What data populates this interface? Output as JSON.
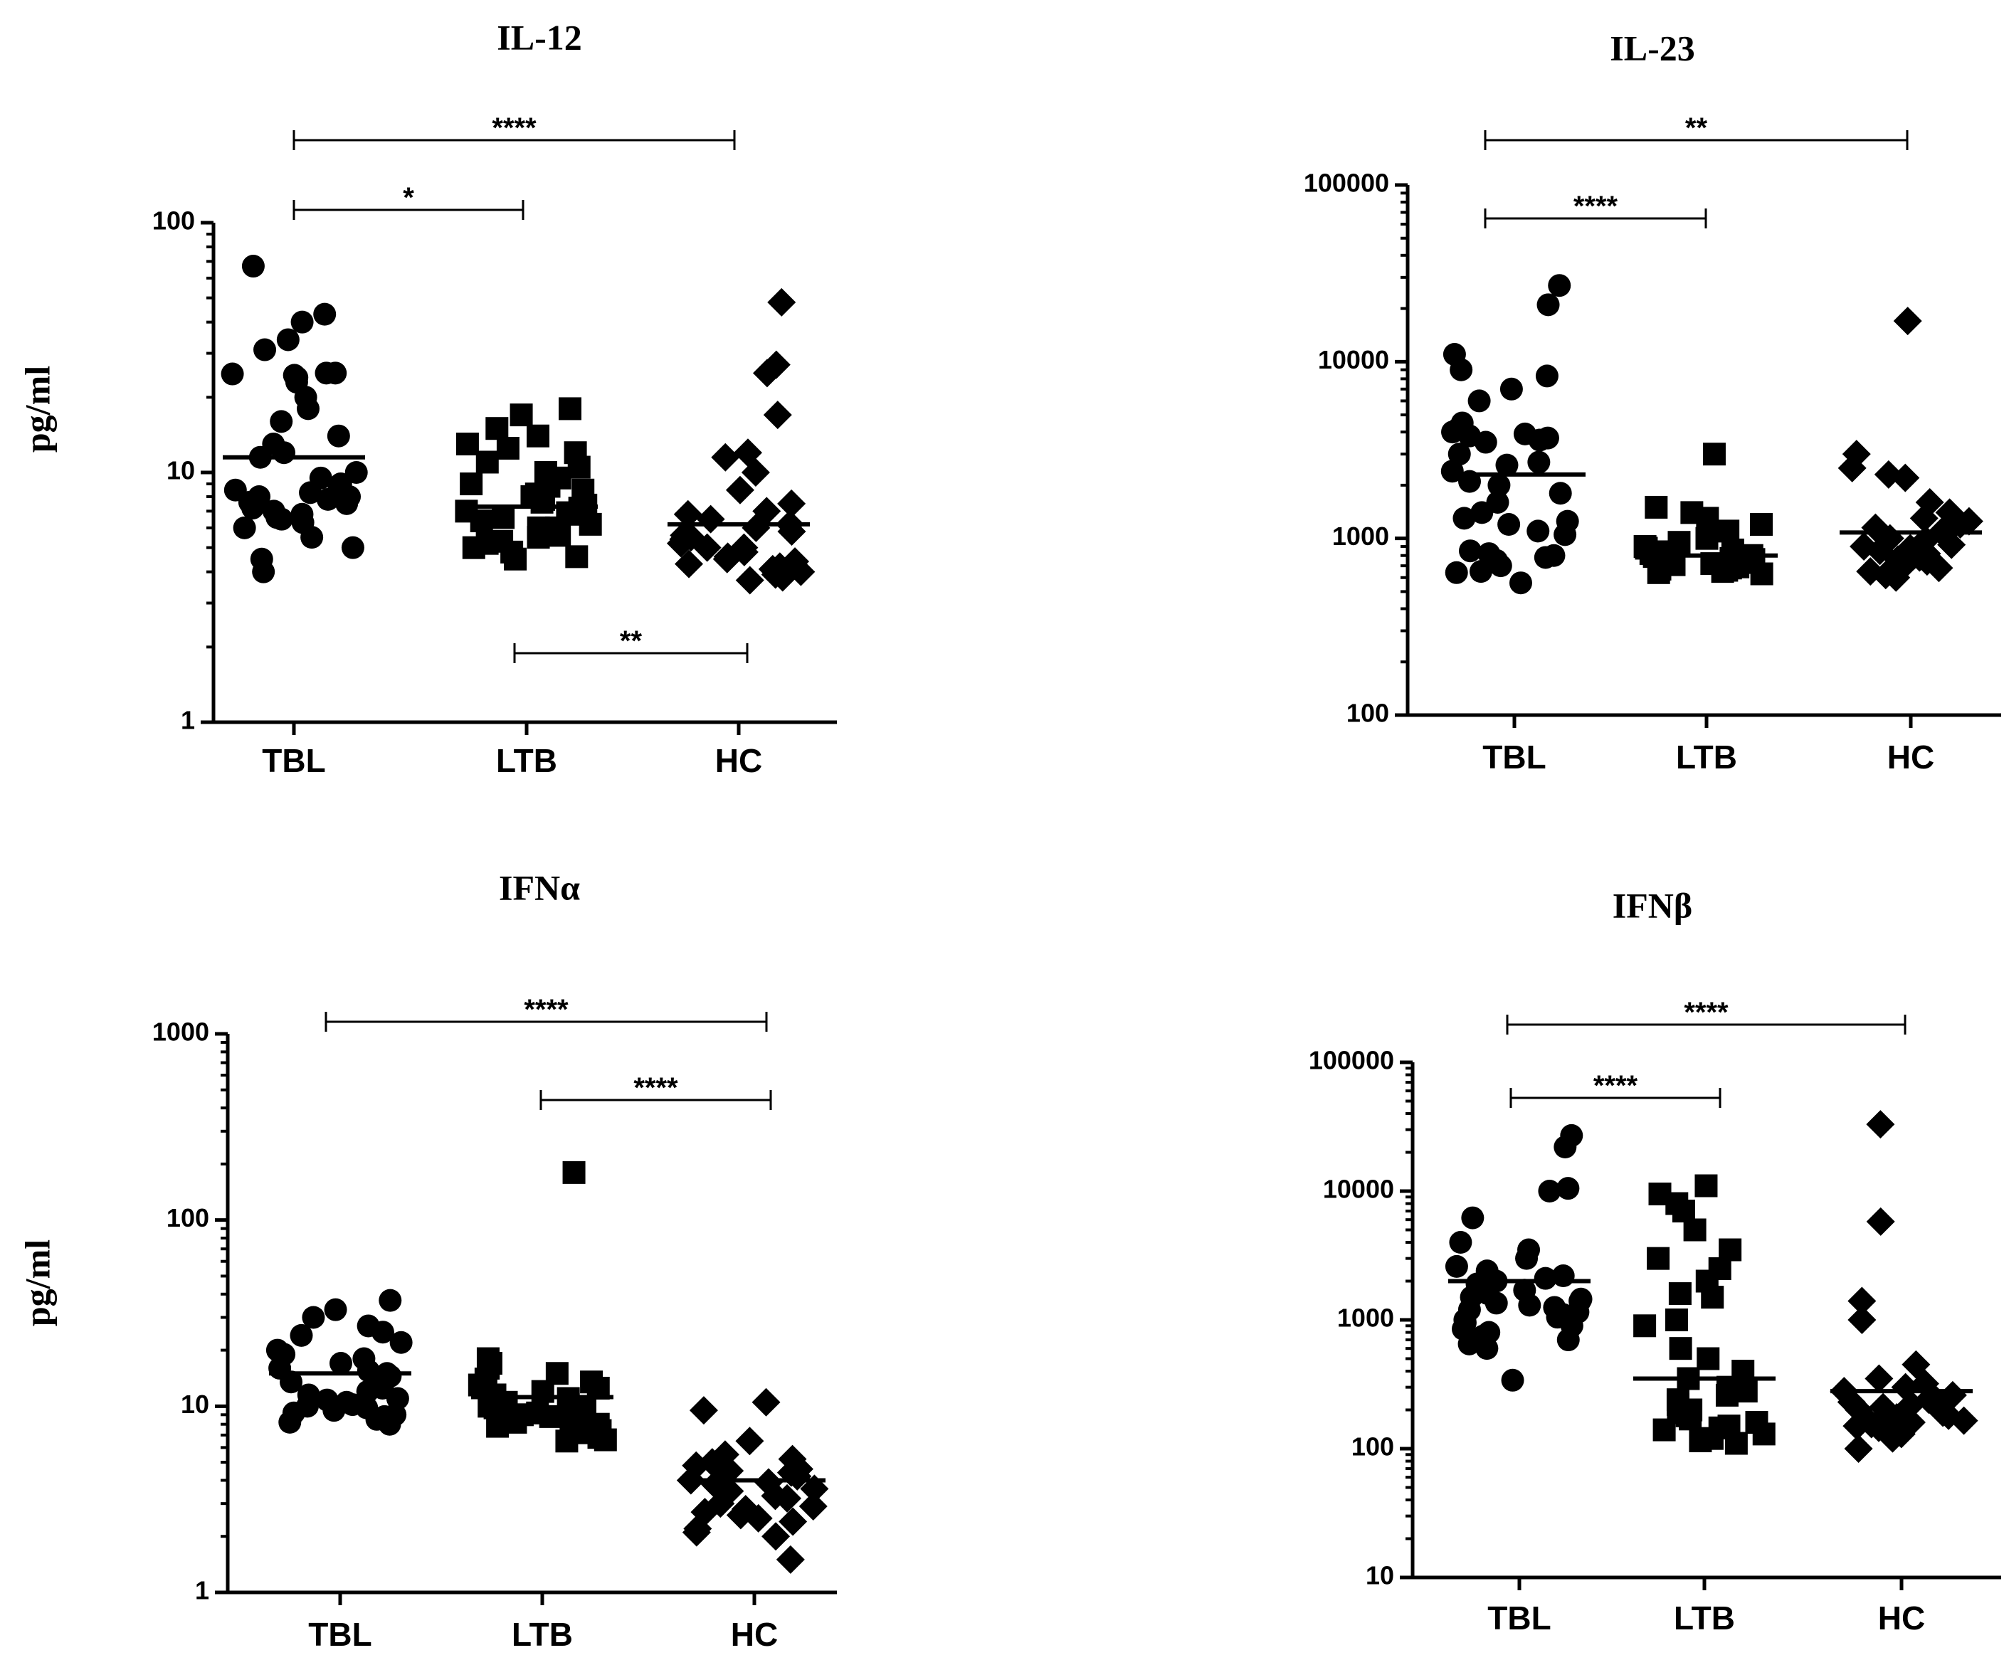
{
  "chart_data": [
    {
      "type": "scatter",
      "title": "IL-12",
      "ylabel": "pg/ml",
      "yscale": "log",
      "ylim": [
        1,
        100
      ],
      "yticks": [
        "1",
        "10",
        "100"
      ],
      "categories": [
        "TBL",
        "LTB",
        "HC"
      ],
      "series": [
        {
          "name": "TBL",
          "marker": "circle",
          "mean": 11.5,
          "values": [
            67,
            43,
            40,
            34,
            31,
            25,
            25,
            24.5,
            24,
            23,
            24.8,
            20,
            18,
            16,
            14,
            13,
            12,
            11.5,
            10,
            9.5,
            9,
            8.8,
            8.5,
            8.3,
            8,
            8,
            7.8,
            7.6,
            7.5,
            7.2,
            7,
            6.8,
            6.6,
            6.5,
            6.3,
            6,
            5.5,
            5,
            4.5,
            4
          ]
        },
        {
          "name": "LTB",
          "marker": "square",
          "mean": 7.3,
          "values": [
            18,
            17,
            15,
            14,
            13,
            12.5,
            12,
            11,
            10.5,
            10,
            9.5,
            9,
            8.8,
            8.5,
            8.2,
            8,
            7.8,
            7.6,
            7.4,
            7.2,
            7,
            6.9,
            6.8,
            6.6,
            6.4,
            6.2,
            6,
            6,
            5.8,
            5.6,
            5.5,
            5.3,
            5.2,
            5,
            4.8,
            4.6,
            4.5
          ]
        },
        {
          "name": "HC",
          "marker": "diamond",
          "mean": 6.2,
          "values": [
            48,
            27,
            25,
            17,
            12,
            11.5,
            10,
            8.5,
            7.5,
            7,
            6.8,
            6.5,
            6.2,
            6,
            5.8,
            5.6,
            5.5,
            5.4,
            5.2,
            5,
            5,
            4.8,
            4.6,
            4.5,
            4.4,
            4.3,
            4.2,
            4.1,
            4,
            3.9,
            3.8,
            3.7
          ]
        }
      ],
      "significance": [
        {
          "from": "TBL",
          "to": "HC",
          "label": "****"
        },
        {
          "from": "TBL",
          "to": "LTB",
          "label": "*"
        },
        {
          "from": "LTB",
          "to": "HC",
          "label": "**"
        }
      ]
    },
    {
      "type": "scatter",
      "title": "IL-23",
      "ylabel": "",
      "yscale": "log",
      "ylim": [
        100,
        100000
      ],
      "yticks": [
        "100",
        "1000",
        "10000",
        "100000"
      ],
      "categories": [
        "TBL",
        "LTB",
        "HC"
      ],
      "series": [
        {
          "name": "TBL",
          "marker": "circle",
          "mean": 2300,
          "values": [
            27000,
            21000,
            11000,
            9000,
            8300,
            7000,
            6000,
            4500,
            4200,
            4000,
            3900,
            3800,
            3700,
            3600,
            3500,
            3000,
            2700,
            2600,
            2400,
            2100,
            2000,
            1800,
            1600,
            1400,
            1300,
            1250,
            1200,
            1100,
            1050,
            850,
            820,
            800,
            780,
            750,
            700,
            650,
            640,
            560
          ]
        },
        {
          "name": "LTB",
          "marker": "square",
          "mean": 800,
          "values": [
            3000,
            1500,
            1400,
            1300,
            1200,
            1100,
            1000,
            950,
            900,
            880,
            860,
            840,
            820,
            800,
            790,
            780,
            770,
            760,
            750,
            740,
            730,
            720,
            710,
            700,
            690,
            680,
            670,
            660,
            650,
            640,
            630
          ]
        },
        {
          "name": "HC",
          "marker": "diamond",
          "mean": 1080,
          "values": [
            17000,
            3000,
            2500,
            2300,
            2200,
            1600,
            1400,
            1300,
            1250,
            1200,
            1150,
            1100,
            1050,
            1000,
            980,
            950,
            920,
            900,
            880,
            850,
            820,
            800,
            780,
            760,
            740,
            720,
            700,
            680,
            650,
            620,
            600
          ]
        }
      ],
      "significance": [
        {
          "from": "TBL",
          "to": "HC",
          "label": "**"
        },
        {
          "from": "TBL",
          "to": "LTB",
          "label": "****"
        }
      ]
    },
    {
      "type": "scatter",
      "title": "IFNα",
      "ylabel": "pg/ml",
      "yscale": "log",
      "ylim": [
        1,
        1000
      ],
      "yticks": [
        "1",
        "10",
        "100",
        "1000"
      ],
      "categories": [
        "TBL",
        "LTB",
        "HC"
      ],
      "series": [
        {
          "name": "TBL",
          "marker": "circle",
          "mean": 15,
          "values": [
            37,
            33,
            30,
            27,
            25,
            24,
            22,
            20,
            19,
            18,
            17,
            16,
            15.5,
            15,
            14.5,
            14,
            13.5,
            13,
            12.5,
            12,
            11.5,
            11,
            10.8,
            10.5,
            10.2,
            10,
            9.8,
            9.5,
            9.2,
            9,
            8.8,
            8.5,
            8.2,
            8
          ]
        },
        {
          "name": "LTB",
          "marker": "square",
          "mean": 11.2,
          "values": [
            180,
            18,
            17,
            16,
            15,
            14,
            13.5,
            13,
            12.5,
            12,
            11.5,
            11,
            10.5,
            10,
            9.8,
            9.5,
            9.2,
            9,
            8.8,
            8.5,
            8.2,
            8,
            7.8,
            7.6,
            7.4,
            7.2,
            7,
            6.8,
            6.6,
            6.5
          ]
        },
        {
          "name": "HC",
          "marker": "diamond",
          "mean": 4,
          "values": [
            10.5,
            9.5,
            6.5,
            5.5,
            5.2,
            5,
            4.8,
            4.6,
            4.5,
            4.4,
            4.2,
            4,
            3.9,
            3.8,
            3.7,
            3.6,
            3.5,
            3.3,
            3.2,
            3,
            2.9,
            2.8,
            2.7,
            2.6,
            2.5,
            2.4,
            2.2,
            2.1,
            2,
            1.5
          ]
        }
      ],
      "significance": [
        {
          "from": "TBL",
          "to": "HC",
          "label": "****"
        },
        {
          "from": "LTB",
          "to": "HC",
          "label": "****"
        }
      ]
    },
    {
      "type": "scatter",
      "title": "IFNβ",
      "ylabel": "",
      "yscale": "log",
      "ylim": [
        10,
        100000
      ],
      "yticks": [
        "10",
        "100",
        "1000",
        "10000",
        "100000"
      ],
      "categories": [
        "TBL",
        "LTB",
        "HC"
      ],
      "series": [
        {
          "name": "TBL",
          "marker": "circle",
          "mean": 2000,
          "values": [
            27000,
            22000,
            10500,
            10000,
            6200,
            4000,
            3500,
            3000,
            2600,
            2400,
            2200,
            2100,
            2000,
            1900,
            1800,
            1700,
            1600,
            1500,
            1450,
            1400,
            1350,
            1300,
            1250,
            1200,
            1150,
            1100,
            1050,
            1000,
            950,
            900,
            850,
            800,
            750,
            700,
            650,
            600,
            340
          ]
        },
        {
          "name": "LTB",
          "marker": "square",
          "mean": 350,
          "values": [
            11000,
            9500,
            8000,
            7000,
            5000,
            3500,
            3000,
            2500,
            2000,
            1600,
            1500,
            1000,
            900,
            600,
            500,
            400,
            350,
            300,
            280,
            260,
            240,
            220,
            200,
            190,
            180,
            170,
            160,
            150,
            145,
            140,
            130,
            120,
            115,
            110
          ]
        },
        {
          "name": "HC",
          "marker": "diamond",
          "mean": 280,
          "values": [
            33000,
            5800,
            1400,
            1000,
            450,
            350,
            320,
            300,
            280,
            260,
            250,
            240,
            230,
            220,
            210,
            200,
            190,
            185,
            180,
            175,
            170,
            165,
            160,
            155,
            150,
            145,
            140,
            130,
            120,
            100
          ]
        }
      ],
      "significance": [
        {
          "from": "TBL",
          "to": "HC",
          "label": "****"
        },
        {
          "from": "TBL",
          "to": "LTB",
          "label": "****"
        }
      ]
    }
  ]
}
